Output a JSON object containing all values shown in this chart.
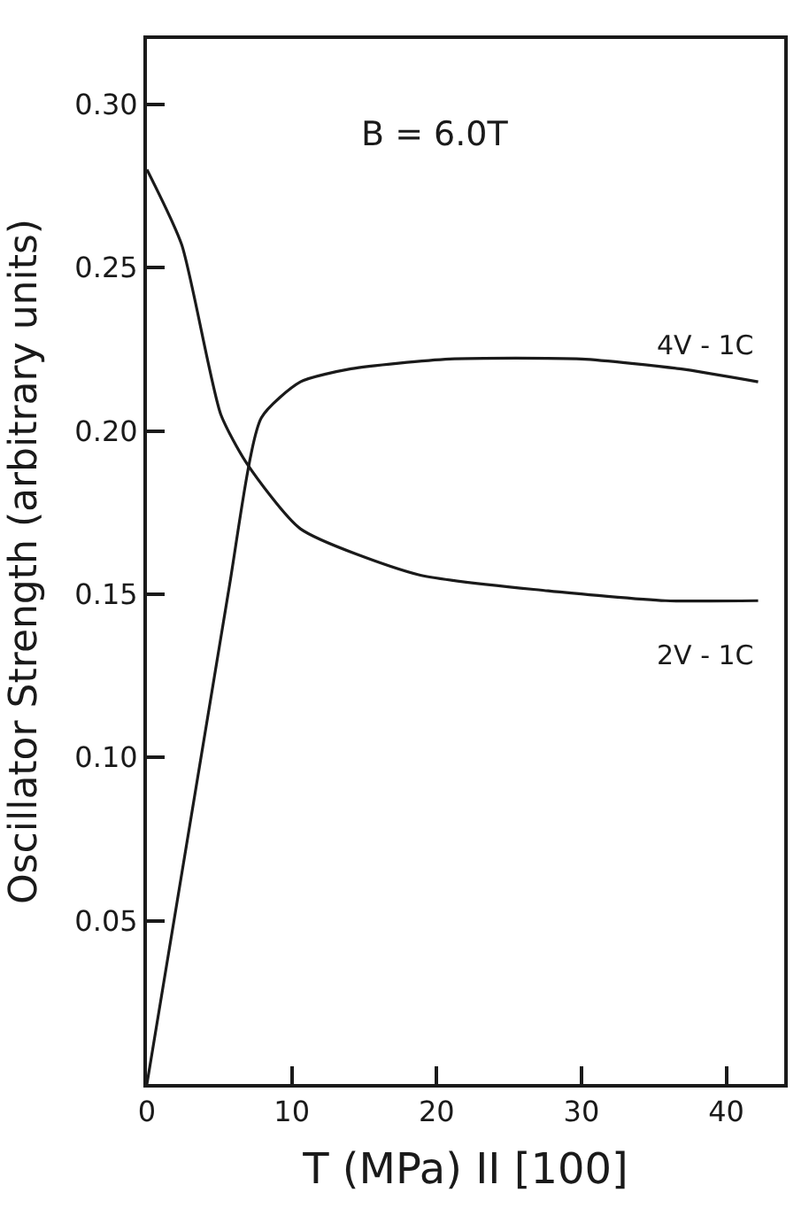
{
  "chart_data": {
    "type": "line",
    "xlabel": "T (MPa) II [100]",
    "ylabel": "Oscillator Strength (arbitrary units)",
    "annotations": [
      "B = 6.0T"
    ],
    "series": [
      {
        "name": "4V - 1C",
        "color": "#1a1a1a",
        "x": [
          0,
          5.6,
          7.9,
          10.6,
          14.1,
          20.9,
          30,
          36.8,
          42.2
        ],
        "values": [
          0,
          0.15,
          0.204,
          0.215,
          0.219,
          0.222,
          0.222,
          0.219,
          0.215
        ]
      },
      {
        "name": "2V - 1C",
        "color": "#1a1a1a",
        "x": [
          0,
          2.4,
          5.1,
          6.9,
          10.6,
          18.7,
          27.7,
          35.8,
          42.2
        ],
        "values": [
          0.28,
          0.257,
          0.205,
          0.19,
          0.17,
          0.156,
          0.151,
          0.148,
          0.148
        ]
      }
    ],
    "xlim": [
      0,
      44
    ],
    "xticks": [
      0,
      10,
      20,
      30,
      40
    ],
    "ylim": [
      0,
      0.32
    ],
    "yticks": [
      0.05,
      {
        "value": 0.1,
        "label": "0.10"
      },
      0.15,
      {
        "value": 0.2,
        "label": "0.20"
      },
      0.25,
      {
        "value": 0.3,
        "label": "0.30"
      }
    ],
    "legend": false,
    "marker": "none",
    "line_style": "solid"
  }
}
